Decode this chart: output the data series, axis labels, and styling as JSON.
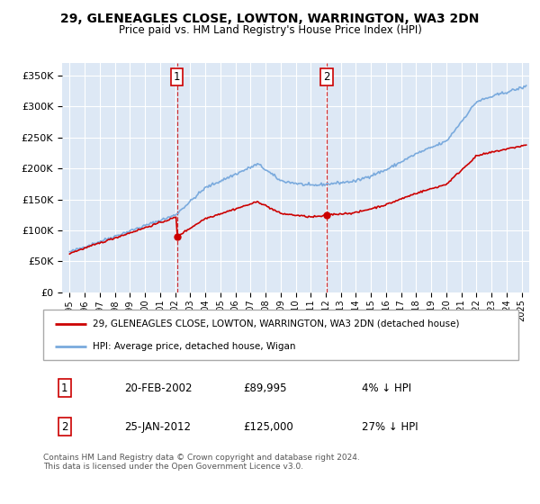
{
  "title": "29, GLENEAGLES CLOSE, LOWTON, WARRINGTON, WA3 2DN",
  "subtitle": "Price paid vs. HM Land Registry's House Price Index (HPI)",
  "hpi_color": "#7aaadd",
  "price_color": "#cc0000",
  "plot_bg_color": "#dde8f5",
  "purchases": [
    {
      "date_num": 2002.13,
      "price": 89995,
      "label": "1",
      "date_str": "20-FEB-2002"
    },
    {
      "date_num": 2012.07,
      "price": 125000,
      "label": "2",
      "date_str": "25-JAN-2012"
    }
  ],
  "legend_label_price": "29, GLENEAGLES CLOSE, LOWTON, WARRINGTON, WA3 2DN (detached house)",
  "legend_label_hpi": "HPI: Average price, detached house, Wigan",
  "table_rows": [
    [
      "1",
      "20-FEB-2002",
      "£89,995",
      "4% ↓ HPI"
    ],
    [
      "2",
      "25-JAN-2012",
      "£125,000",
      "27% ↓ HPI"
    ]
  ],
  "footer": "Contains HM Land Registry data © Crown copyright and database right 2024.\nThis data is licensed under the Open Government Licence v3.0.",
  "ylim": [
    0,
    370000
  ],
  "xlim_start": 1994.5,
  "xlim_end": 2025.5,
  "yticks": [
    0,
    50000,
    100000,
    150000,
    200000,
    250000,
    300000,
    350000
  ],
  "xticks": [
    1995,
    1996,
    1997,
    1998,
    1999,
    2000,
    2001,
    2002,
    2003,
    2004,
    2005,
    2006,
    2007,
    2008,
    2009,
    2010,
    2011,
    2012,
    2013,
    2014,
    2015,
    2016,
    2017,
    2018,
    2019,
    2020,
    2021,
    2022,
    2023,
    2024,
    2025
  ]
}
